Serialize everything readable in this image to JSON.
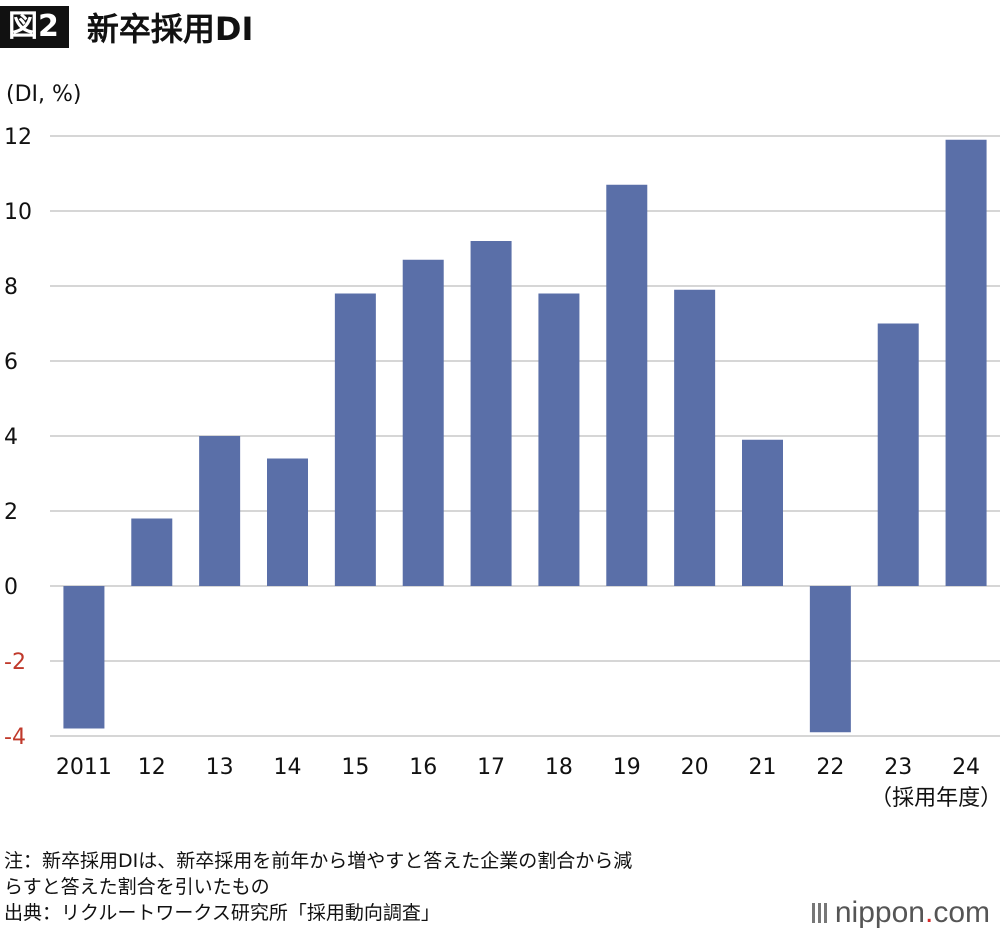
{
  "header": {
    "badge": "図2",
    "title": "新卒採用DI"
  },
  "chart_data": {
    "type": "bar",
    "ylabel": "(DI, %)",
    "xlabel": "（採用年度）",
    "ylim": [
      -4,
      12
    ],
    "yticks": [
      12,
      10,
      8,
      6,
      4,
      2,
      0,
      -2,
      -4
    ],
    "categories": [
      "2011",
      "12",
      "13",
      "14",
      "15",
      "16",
      "17",
      "18",
      "19",
      "20",
      "21",
      "22",
      "23",
      "24"
    ],
    "values": [
      -3.8,
      1.8,
      4.0,
      3.4,
      7.8,
      8.7,
      9.2,
      7.8,
      10.7,
      7.9,
      3.9,
      -3.9,
      7.0,
      11.9
    ],
    "grid": true,
    "colors": {
      "bar": "#5a6fa8",
      "negative_tick": "#c0392b",
      "grid": "#c8c8c8"
    }
  },
  "notes": {
    "line1": "注：新卒採用DIは、新卒採用を前年から増やすと答えた企業の割合から減",
    "line2": "らすと答えた割合を引いたもの",
    "line3": "出典：リクルートワークス研究所「採用動向調査」"
  },
  "logo": {
    "name": "nippon",
    "dot": ".",
    "suffix": "com"
  }
}
